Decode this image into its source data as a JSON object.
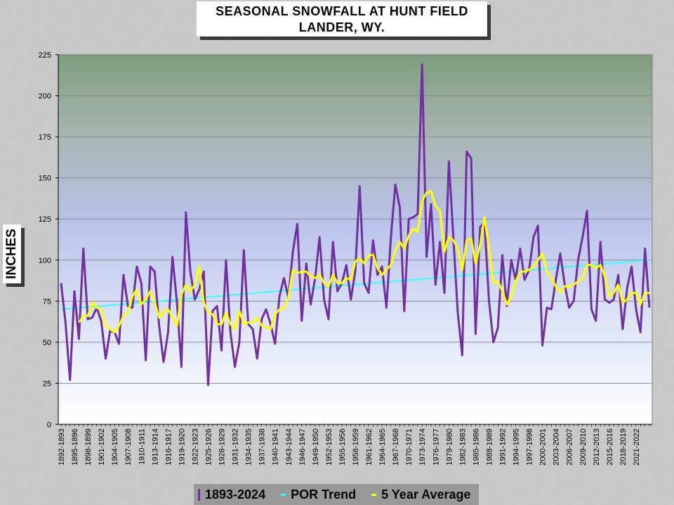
{
  "title": {
    "line1": "SEASONAL  SNOWFALL AT HUNT  FIELD",
    "line2": "LANDER,  WY."
  },
  "colors": {
    "snowfall": "#7030a0",
    "trend": "#33ffff",
    "average": "#ffff00"
  },
  "legend": {
    "series1": "1893-2024",
    "series2": "POR Trend",
    "series3": "5 Year Average"
  },
  "chart_data": {
    "type": "line",
    "ylabel": "INCHES",
    "ylim": [
      0,
      225
    ],
    "yticks": [
      0,
      25,
      50,
      75,
      100,
      125,
      150,
      175,
      200,
      225
    ],
    "x_tick_labels": [
      "1892-1893",
      "1895-1896",
      "1898-1899",
      "1901-1902",
      "1904-1905",
      "1907-1908",
      "1910-1911",
      "1913-1914",
      "1916-1917",
      "1919-1920",
      "1922-1923",
      "1925-1926",
      "1928-1929",
      "1931-1932",
      "1934-1935",
      "1937-1938",
      "1940-1941",
      "1943-1944",
      "1946-1947",
      "1949-1950",
      "1952-1953",
      "1955-1956",
      "1958-1959",
      "1961-1962",
      "1964-1965",
      "1967-1968",
      "1970-1971",
      "1973-1974",
      "1976-1977",
      "1979-1980",
      "1982-1983",
      "1985-1986",
      "1988-1989",
      "1991-1992",
      "1994-1995",
      "1997-1998",
      "2000-2001",
      "2003-2004",
      "2006-2007",
      "2009-2010",
      "2012-2013",
      "2015-2016",
      "2018-2019",
      "2021-2022"
    ],
    "x_tick_step": 3,
    "grid": true,
    "legend_position": "bottom",
    "series": [
      {
        "name": "1893-2024",
        "color": "#7030a0",
        "values": [
          86,
          62,
          27,
          81,
          52,
          107,
          64,
          65,
          71,
          63,
          40,
          57,
          56,
          49,
          91,
          72,
          71,
          96,
          86,
          39,
          96,
          93,
          60,
          38,
          56,
          102,
          74,
          35,
          129,
          93,
          76,
          82,
          93,
          24,
          69,
          72,
          45,
          100,
          56,
          35,
          50,
          106,
          61,
          58,
          40,
          64,
          70,
          61,
          49,
          78,
          89,
          77,
          105,
          122,
          63,
          98,
          73,
          89,
          114,
          76,
          64,
          111,
          81,
          86,
          97,
          76,
          93,
          145,
          86,
          80,
          112,
          91,
          96,
          71,
          114,
          146,
          132,
          69,
          125,
          126,
          128,
          219,
          102,
          134,
          85,
          111,
          80,
          160,
          114,
          68,
          42,
          166,
          162,
          55,
          120,
          123,
          75,
          50,
          59,
          103,
          72,
          100,
          88,
          107,
          88,
          94,
          114,
          121,
          48,
          71,
          70,
          88,
          104,
          85,
          71,
          75,
          100,
          114,
          130,
          70,
          63,
          111,
          76,
          74,
          76,
          91,
          58,
          83,
          96,
          70,
          56,
          107,
          71
        ]
      },
      {
        "name": "POR Trend",
        "color": "#33ffff",
        "values": [
          70,
          100
        ]
      },
      {
        "name": "5 Year Average",
        "color": "#ffff00",
        "values": [
          62,
          66,
          66,
          74,
          71,
          70,
          60,
          58,
          56,
          60,
          66,
          68,
          78,
          82,
          73,
          76,
          81,
          74,
          65,
          69,
          70,
          65,
          60,
          79,
          85,
          81,
          85,
          96,
          74,
          68,
          67,
          61,
          61,
          68,
          61,
          58,
          69,
          61,
          62,
          62,
          65,
          60,
          59,
          58,
          67,
          70,
          71,
          77,
          94,
          92,
          93,
          93,
          90,
          89,
          91,
          86,
          84,
          91,
          86,
          86,
          89,
          88,
          99,
          101,
          98,
          103,
          103,
          95,
          91,
          94,
          97,
          106,
          111,
          107,
          115,
          119,
          117,
          136,
          141,
          142,
          133,
          130,
          105,
          114,
          112,
          107,
          94,
          112,
          113,
          98,
          109,
          126,
          107,
          86,
          87,
          81,
          73,
          78,
          87,
          93,
          93,
          94,
          96,
          100,
          104,
          93,
          89,
          84,
          80,
          84,
          84,
          85,
          87,
          89,
          97,
          97,
          95,
          97,
          90,
          78,
          80,
          85,
          74,
          76,
          80,
          80,
          73,
          80,
          80
        ]
      }
    ]
  }
}
